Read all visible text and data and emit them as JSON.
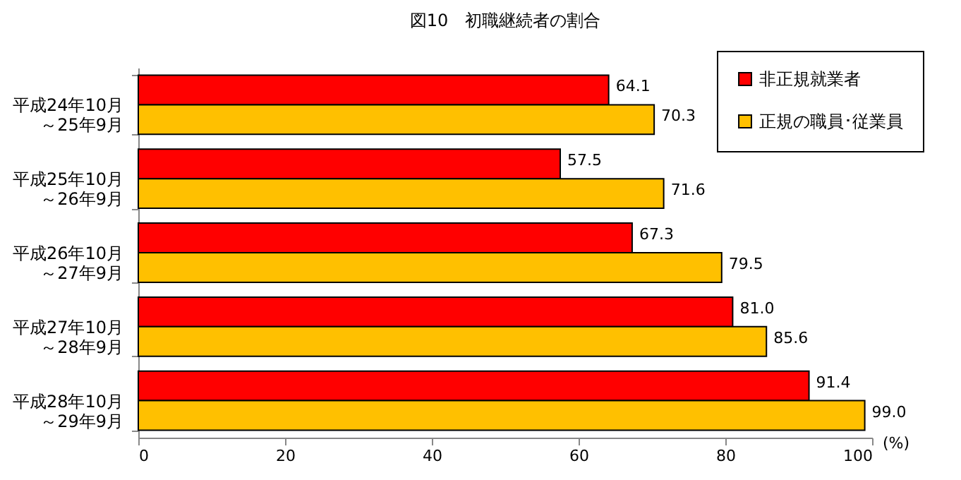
{
  "chart_data": {
    "type": "bar",
    "orientation": "horizontal",
    "title": "図10　初職継続者の割合",
    "xlabel": "(%)",
    "categories": [
      "平成24年10月～25年9月",
      "平成25年10月～26年9月",
      "平成26年10月～27年9月",
      "平成27年10月～28年9月",
      "平成28年10月～29年9月"
    ],
    "series": [
      {
        "name": "非正規就業者",
        "color": "#ff0000",
        "values": [
          64.1,
          57.5,
          67.3,
          81.0,
          91.4
        ],
        "value_labels": [
          "64.1",
          "57.5",
          "67.3",
          "81.0",
          "91.4"
        ]
      },
      {
        "name": "正規の職員･従業員",
        "color": "#ffc000",
        "values": [
          70.3,
          71.6,
          79.5,
          85.6,
          99.0
        ],
        "value_labels": [
          "70.3",
          "71.6",
          "79.5",
          "85.6",
          "99.0"
        ]
      }
    ],
    "xlim": [
      0,
      100
    ],
    "xticks": [
      0,
      20,
      40,
      60,
      80,
      100
    ],
    "grid": false,
    "legend": "top right"
  }
}
